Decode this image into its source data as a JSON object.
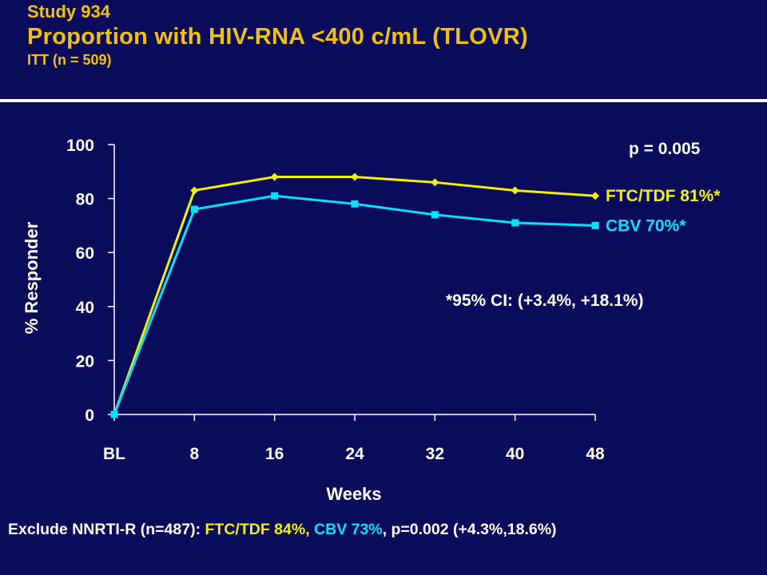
{
  "header": {
    "study": "Study 934",
    "title": "Proportion with HIV-RNA <400 c/mL (TLOVR)",
    "subtitle": "ITT (n = 509)"
  },
  "colors": {
    "background": "#0b0b5c",
    "title": "#f2c200",
    "text": "#ffffff",
    "ftc_series": "#f2f200",
    "cbv_series": "#00e0ff"
  },
  "chart_data": {
    "type": "line",
    "x": [
      "BL",
      "8",
      "16",
      "24",
      "32",
      "40",
      "48"
    ],
    "xlabel": "Weeks",
    "ylabel": "% Responder",
    "ylim": [
      0,
      100
    ],
    "yticks": [
      0,
      20,
      40,
      60,
      80,
      100
    ],
    "grid": false,
    "series": [
      {
        "name": "FTC/TDF 81%*",
        "color": "#f2f200",
        "marker": "diamond",
        "values": [
          0,
          83,
          88,
          88,
          86,
          83,
          81
        ]
      },
      {
        "name": "CBV  70%*",
        "color": "#00e0ff",
        "marker": "square",
        "values": [
          0,
          76,
          81,
          78,
          74,
          71,
          70
        ]
      }
    ],
    "annotations": {
      "pvalue": "p = 0.005",
      "ci": "*95% CI: (+3.4%, +18.1%)"
    }
  },
  "footer": {
    "prefix": "Exclude NNRTI-R (n=487): ",
    "ftc": "FTC/TDF 84%,",
    "space": " ",
    "cbv": "CBV 73%",
    "rest": ", p=0.002 (+4.3%,18.6%)"
  }
}
